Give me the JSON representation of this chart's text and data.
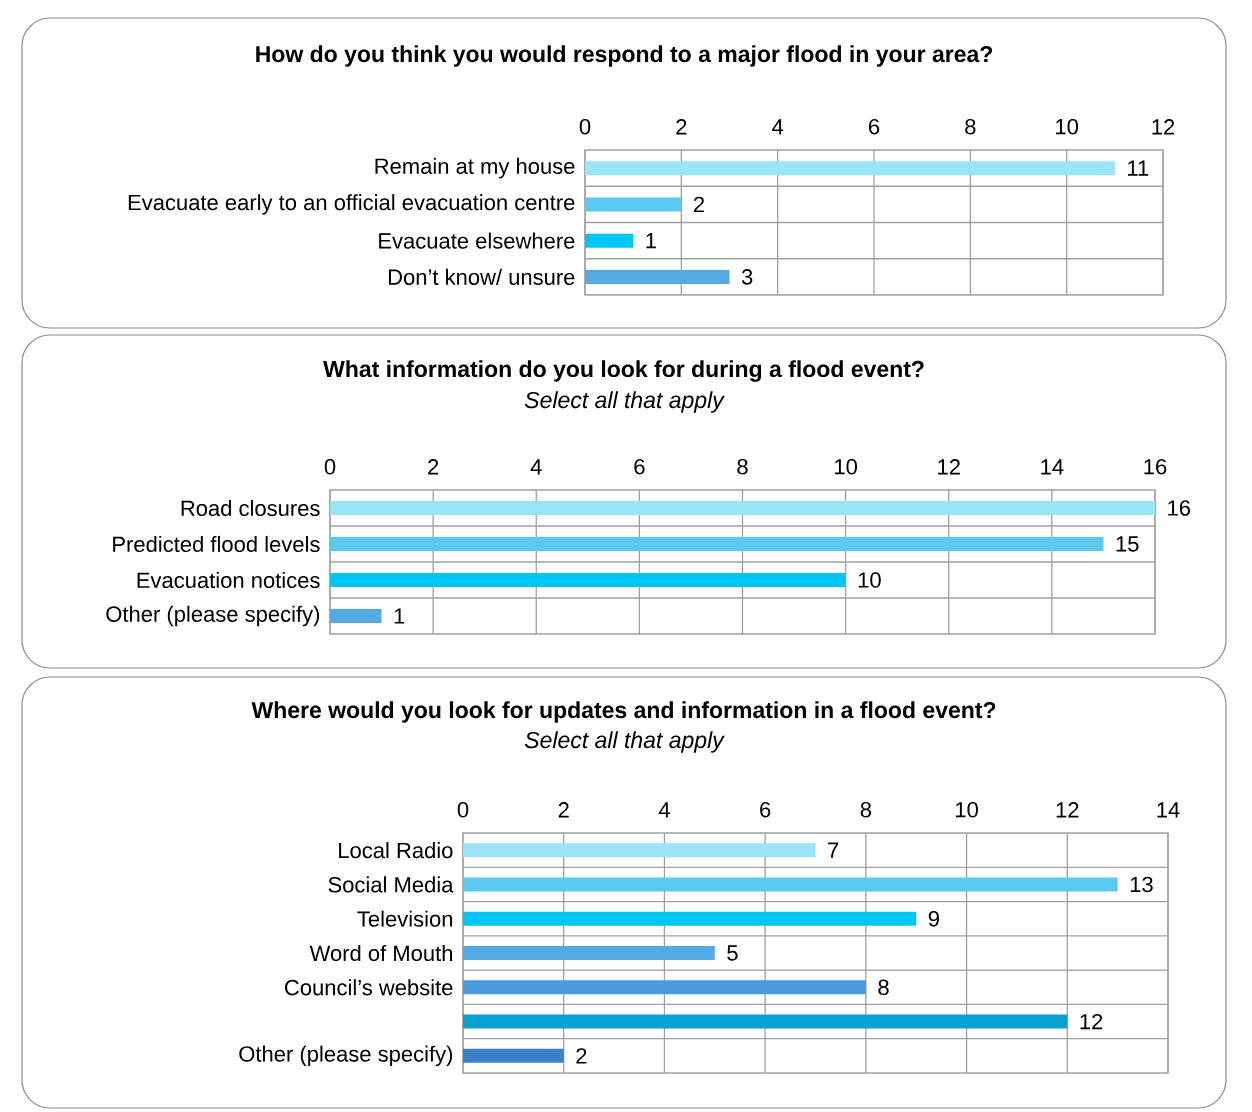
{
  "chart_data": [
    {
      "type": "bar",
      "orientation": "horizontal",
      "title": "How do you think you would respond to a major flood in your area?",
      "categories": [
        "Remain at my house",
        "Evacuate early to an official evacuation centre",
        "Evacuate elsewhere",
        "Don’t know/ unsure"
      ],
      "values": [
        11,
        2,
        1,
        3
      ],
      "colors": [
        "#99e3fb",
        "#5bc8ef",
        "#00c6f6",
        "#54a8e4"
      ],
      "xlim": [
        0,
        12
      ],
      "xticks": [
        0,
        2,
        4,
        6,
        8,
        10,
        12
      ],
      "grid": true,
      "data_labels": true
    },
    {
      "type": "bar",
      "orientation": "horizontal",
      "title": "What information do you look for during a flood event?",
      "subtitle": "Select all that apply",
      "categories": [
        "Road closures",
        "Predicted flood levels",
        "Evacuation notices",
        "Other (please specify)"
      ],
      "values": [
        16,
        15,
        10,
        1
      ],
      "colors": [
        "#99e3fb",
        "#5bc8ef",
        "#00c6f6",
        "#54a8e4"
      ],
      "xlim": [
        0,
        16
      ],
      "xticks": [
        0,
        2,
        4,
        6,
        8,
        10,
        12,
        14,
        16
      ],
      "grid": true,
      "data_labels": true
    },
    {
      "type": "bar",
      "orientation": "horizontal",
      "title": "Where would you look for updates and information in a flood event?",
      "subtitle": "Select all that apply",
      "categories": [
        "Local Radio",
        "Social Media",
        "Television",
        "Word of Mouth",
        "Council’s website",
        null,
        "Other (please specify)"
      ],
      "values": [
        7,
        13,
        9,
        5,
        8,
        12,
        2
      ],
      "colors": [
        "#99e3fb",
        "#5bc8ef",
        "#00c6f6",
        "#54a8e4",
        "#4a9ae0",
        "#0aa0d0",
        "#3a80c8"
      ],
      "xlim": [
        0,
        14
      ],
      "xticks": [
        0,
        2,
        4,
        6,
        8,
        10,
        12,
        14
      ],
      "grid": true,
      "data_labels": true
    }
  ]
}
